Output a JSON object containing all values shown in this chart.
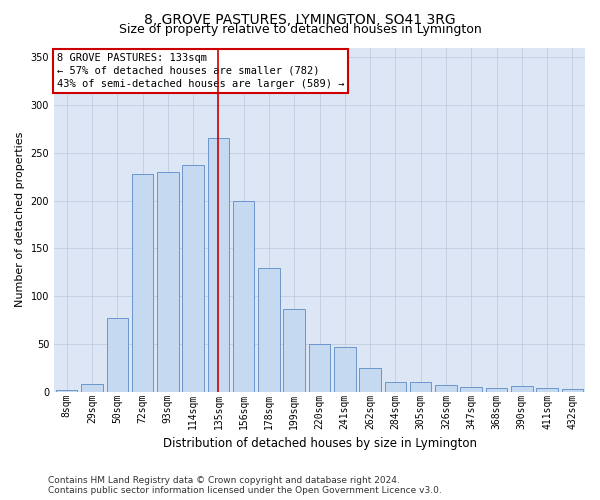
{
  "title": "8, GROVE PASTURES, LYMINGTON, SO41 3RG",
  "subtitle": "Size of property relative to detached houses in Lymington",
  "xlabel": "Distribution of detached houses by size in Lymington",
  "ylabel": "Number of detached properties",
  "bar_labels": [
    "8sqm",
    "29sqm",
    "50sqm",
    "72sqm",
    "93sqm",
    "114sqm",
    "135sqm",
    "156sqm",
    "178sqm",
    "199sqm",
    "220sqm",
    "241sqm",
    "262sqm",
    "284sqm",
    "305sqm",
    "326sqm",
    "347sqm",
    "368sqm",
    "390sqm",
    "411sqm",
    "432sqm"
  ],
  "bar_values": [
    2,
    8,
    77,
    228,
    230,
    237,
    265,
    200,
    130,
    87,
    50,
    47,
    25,
    11,
    10,
    7,
    5,
    4,
    6,
    4,
    3
  ],
  "bar_color": "#c5d9f1",
  "bar_edge_color": "#5b8ac5",
  "property_label": "8 GROVE PASTURES: 133sqm",
  "pct_smaller": 57,
  "n_smaller": 782,
  "pct_larger": 43,
  "n_larger": 589,
  "vline_color": "#cc0000",
  "vline_bin_index": 6,
  "ylim": [
    0,
    360
  ],
  "yticks": [
    0,
    50,
    100,
    150,
    200,
    250,
    300,
    350
  ],
  "annotation_box_color": "#ffffff",
  "annotation_box_edge": "#cc0000",
  "background_color": "#ffffff",
  "plot_bg_color": "#dce6f5",
  "grid_color": "#b8c8dc",
  "footer_text": "Contains HM Land Registry data © Crown copyright and database right 2024.\nContains public sector information licensed under the Open Government Licence v3.0.",
  "title_fontsize": 10,
  "subtitle_fontsize": 9,
  "xlabel_fontsize": 8.5,
  "ylabel_fontsize": 8,
  "tick_fontsize": 7,
  "annotation_fontsize": 7.5,
  "footer_fontsize": 6.5
}
